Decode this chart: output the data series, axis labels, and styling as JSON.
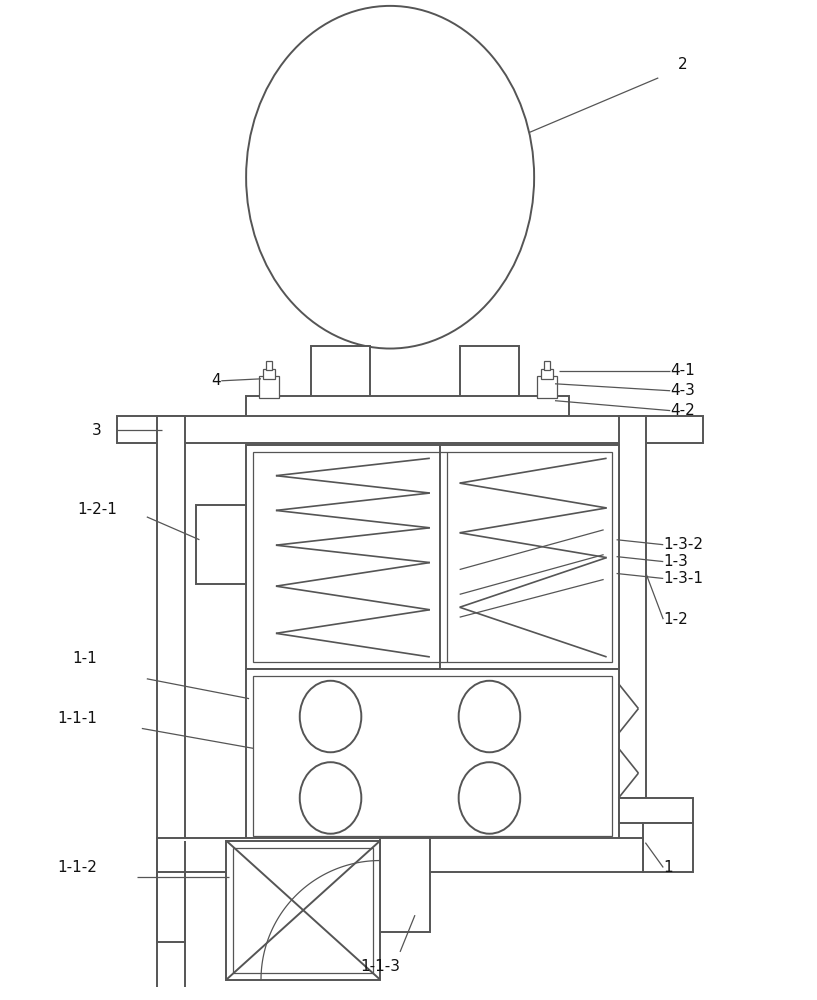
{
  "bg_color": "#ffffff",
  "line_color": "#555555",
  "lw": 1.4,
  "tlw": 0.9,
  "fig_width": 8.17,
  "fig_height": 10.0
}
